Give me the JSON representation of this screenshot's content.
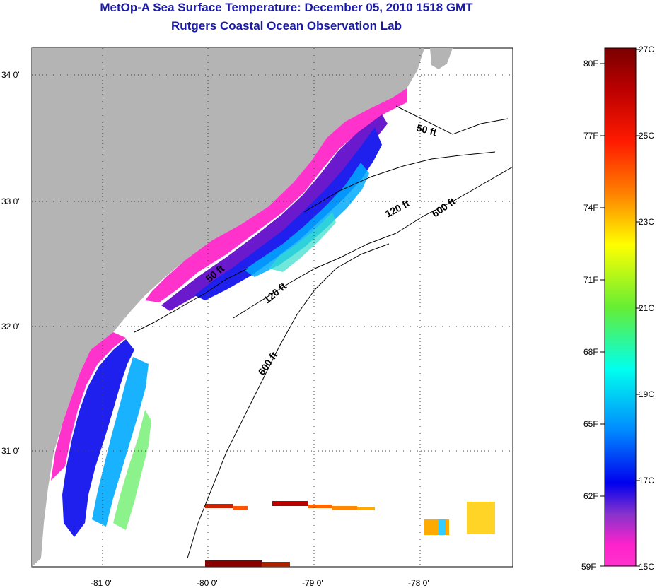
{
  "title": "MetOp-A Sea Surface Temperature:  December 05, 2010 1518 GMT",
  "subtitle": "Rutgers Coastal Ocean Observation Lab",
  "map": {
    "lat_labels": [
      "34 0'",
      "33 0'",
      "32 0'",
      "31 0'"
    ],
    "lon_labels": [
      "-81 0'",
      "-80 0'",
      "-79 0'",
      "-78 0'"
    ],
    "contours": [
      "50 ft",
      "120 ft",
      "600 ft",
      "50 ft",
      "120 ft",
      "600 ft"
    ],
    "colors": {
      "land": "#b4b4b4",
      "water": "#ffffff",
      "coast_line": "#000000"
    }
  },
  "colorbar": {
    "fahrenheit": [
      "80F",
      "77F",
      "74F",
      "71F",
      "68F",
      "65F",
      "62F",
      "59F"
    ],
    "celsius": [
      "27C",
      "25C",
      "23C",
      "21C",
      "19C",
      "17C",
      "15C"
    ]
  }
}
